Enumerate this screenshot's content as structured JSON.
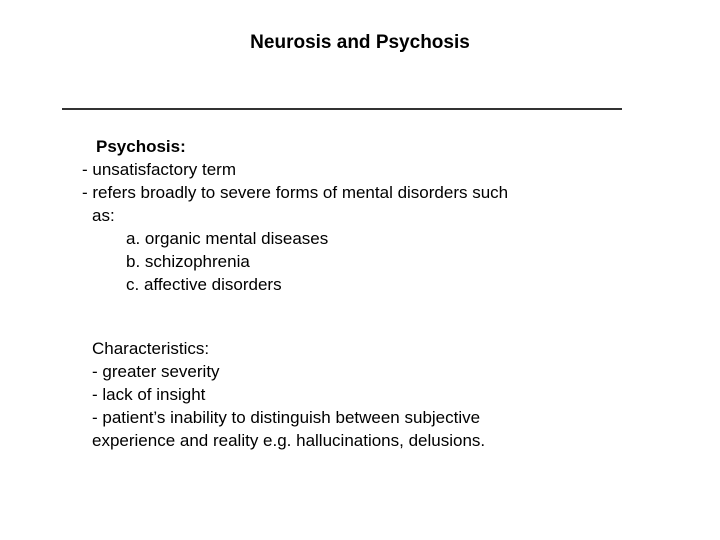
{
  "slide": {
    "title": "Neurosis and Psychosis",
    "section1": {
      "heading": "Psychosis:",
      "line1": "- unsatisfactory term",
      "line2": "- refers broadly to severe forms of mental disorders such",
      "line2b": "as:",
      "sub_a": "a. organic mental diseases",
      "sub_b": "b. schizophrenia",
      "sub_c": "c. affective disorders"
    },
    "section2": {
      "heading": "Characteristics:",
      "line1": "- greater severity",
      "line2": "- lack of insight",
      "line3": "- patient’s inability to distinguish between subjective",
      "line3b": "experience and reality e.g. hallucinations, delusions."
    },
    "colors": {
      "text": "#000000",
      "background": "#ffffff",
      "rule": "#333333"
    },
    "fonts": {
      "title_size": 19,
      "body_size": 17,
      "family": "Verdana"
    }
  }
}
